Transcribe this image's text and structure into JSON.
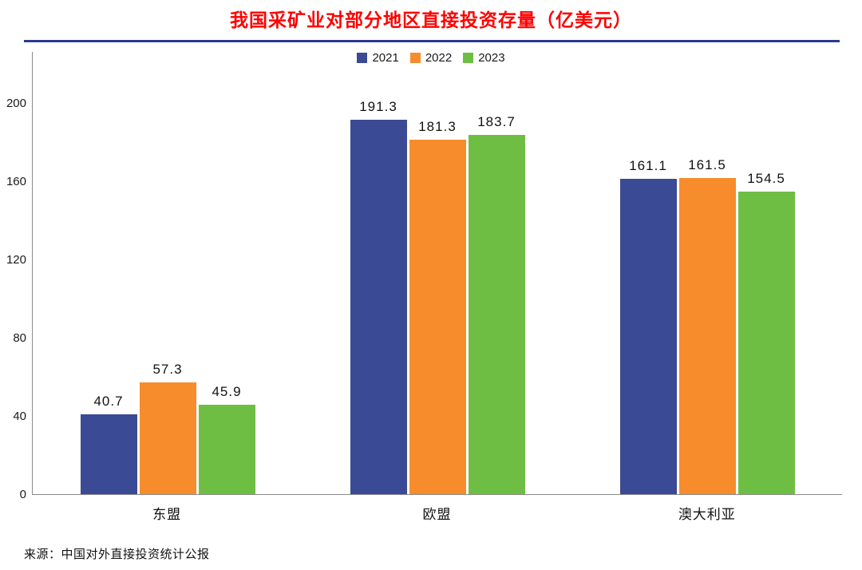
{
  "title": "我国采矿业对部分地区直接投资存量（亿美元）",
  "source": "来源：中国对外直接投资统计公报",
  "colors": {
    "title": "#fe0000",
    "divider": "#2b3a90",
    "axis": "#8a8a8a",
    "series": [
      "#3b4a94",
      "#f68c2c",
      "#6fbe44"
    ]
  },
  "chart_data": {
    "type": "bar",
    "title": "我国采矿业对部分地区直接投资存量（亿美元）",
    "categories": [
      "东盟",
      "欧盟",
      "澳大利亚"
    ],
    "series": [
      {
        "name": "2021",
        "color": "#3b4a94",
        "values": [
          40.7,
          191.3,
          161.1
        ]
      },
      {
        "name": "2022",
        "color": "#f68c2c",
        "values": [
          57.3,
          181.3,
          161.5
        ]
      },
      {
        "name": "2023",
        "color": "#6fbe44",
        "values": [
          45.9,
          183.7,
          154.5
        ]
      }
    ],
    "xlabel": "",
    "ylabel": "",
    "ylim": [
      0,
      200
    ],
    "yticks": [
      0,
      40,
      80,
      120,
      160,
      200
    ],
    "grid": false,
    "legend_position": "top-center",
    "value_labels": true
  }
}
